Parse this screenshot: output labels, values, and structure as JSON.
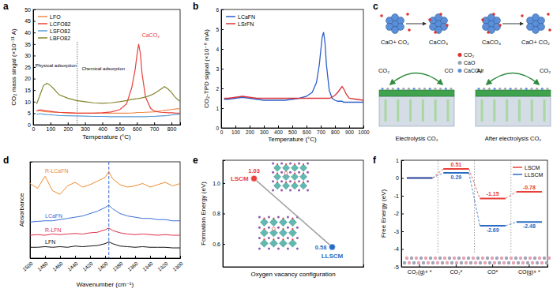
{
  "chart_data": [
    {
      "label": "a",
      "type": "line",
      "x_label": "Temperature (°C)",
      "y_label": "CO₂ mass singal (×10⁻¹¹ A)",
      "xlim": [
        0,
        850
      ],
      "xticks": [
        0,
        100,
        200,
        300,
        400,
        500,
        600,
        700,
        800
      ],
      "ylim": [
        0,
        50
      ],
      "yticks": [
        0,
        5,
        10,
        15,
        20,
        25,
        30,
        35,
        40,
        45,
        50
      ],
      "x": [
        20,
        40,
        60,
        80,
        100,
        120,
        150,
        200,
        250,
        300,
        350,
        400,
        450,
        500,
        540,
        570,
        590,
        600,
        610,
        620,
        630,
        650,
        680,
        700,
        720,
        740,
        760,
        780,
        800,
        820,
        850
      ],
      "series": [
        {
          "name": "LFO",
          "color": "#f08a4b",
          "values": [
            6,
            6,
            5.8,
            5.6,
            5.5,
            5.4,
            5.3,
            5.2,
            5.0,
            5.0,
            5.0,
            5.0,
            5.0,
            5.0,
            5.0,
            5.1,
            5.2,
            5.3,
            5.3,
            5.3,
            5.3,
            5.4,
            5.5,
            5.6,
            5.8,
            6.0,
            6.2,
            6.4,
            6.6,
            6.8,
            7.0
          ]
        },
        {
          "name": "LCFO82",
          "color": "#e8403a",
          "values": [
            6,
            6.5,
            6.2,
            6,
            5.8,
            5.6,
            5.4,
            5.2,
            5,
            5,
            5,
            5.2,
            5.5,
            6.5,
            9,
            16,
            24,
            30,
            35,
            31,
            22,
            12,
            7,
            6,
            5.6,
            5.4,
            5.3,
            5.2,
            5.2,
            5.1,
            5.0
          ]
        },
        {
          "name": "LSFO82",
          "color": "#5b9bd5",
          "values": [
            4.5,
            4.8,
            4.6,
            4.4,
            4.3,
            4.2,
            4.0,
            3.9,
            3.8,
            3.7,
            3.6,
            3.6,
            3.5,
            3.5,
            3.5,
            3.5,
            3.5,
            3.5,
            3.5,
            3.5,
            3.5,
            3.5,
            3.6,
            3.6,
            3.7,
            3.8,
            3.9,
            4.0,
            4.2,
            4.4,
            4.6
          ]
        },
        {
          "name": "LBFO82",
          "color": "#85852e",
          "values": [
            9,
            13,
            17,
            18,
            17,
            15.5,
            13,
            11.5,
            10.5,
            10,
            9.5,
            9.3,
            9.5,
            10,
            10.5,
            11,
            11.2,
            11.3,
            11.4,
            11.5,
            11.7,
            12,
            12.8,
            13.5,
            14.5,
            15.5,
            16.5,
            15.5,
            14,
            12,
            10
          ]
        }
      ],
      "legend": "upper left",
      "annotations": [
        "Physical adsorption",
        "Chemical adsorption",
        "CaCO₃"
      ]
    },
    {
      "label": "b",
      "type": "line",
      "x_label": "Temperature (°C)",
      "y_label": "CO₂-TPD signal (×10⁻⁹ mA)",
      "xlim": [
        0,
        1000
      ],
      "xticks": [
        0,
        100,
        200,
        300,
        400,
        500,
        600,
        700,
        800,
        900,
        1000
      ],
      "ylim": [
        0,
        6
      ],
      "yticks": [
        0,
        1,
        2,
        3,
        4,
        5,
        6
      ],
      "x": [
        20,
        50,
        100,
        150,
        200,
        250,
        300,
        350,
        400,
        450,
        500,
        550,
        600,
        640,
        670,
        690,
        700,
        710,
        720,
        730,
        740,
        760,
        780,
        800,
        820,
        840,
        850,
        860,
        880,
        900,
        950,
        1000
      ],
      "series": [
        {
          "name": "LCaFN",
          "color": "#2d5fc8",
          "values": [
            1.45,
            1.45,
            1.5,
            1.55,
            1.5,
            1.45,
            1.4,
            1.4,
            1.4,
            1.4,
            1.45,
            1.5,
            1.6,
            1.8,
            2.3,
            3.2,
            3.9,
            4.6,
            4.85,
            4.3,
            3.2,
            1.9,
            1.5,
            1.4,
            1.35,
            1.35,
            1.35,
            1.3,
            1.3,
            1.3,
            1.3,
            1.3
          ]
        },
        {
          "name": "LSrFN",
          "color": "#d9343a",
          "values": [
            1.5,
            1.5,
            1.55,
            1.6,
            1.55,
            1.5,
            1.5,
            1.5,
            1.5,
            1.5,
            1.5,
            1.5,
            1.5,
            1.5,
            1.5,
            1.5,
            1.5,
            1.5,
            1.5,
            1.5,
            1.5,
            1.5,
            1.55,
            1.65,
            1.8,
            2.0,
            2.1,
            2.0,
            1.7,
            1.5,
            1.45,
            1.4
          ]
        }
      ],
      "legend": "upper left"
    },
    {
      "label": "d",
      "type": "line",
      "x_label": "Wavenumber (cm⁻¹)",
      "y_label": "Absorbance",
      "xlim": [
        1500,
        1300
      ],
      "xticks": [
        1500,
        1480,
        1460,
        1440,
        1420,
        1400,
        1380,
        1360,
        1340,
        1320,
        1300
      ],
      "ylim": [
        0,
        8
      ],
      "yticks": [],
      "tick_labels": "x",
      "x": [
        1500,
        1490,
        1480,
        1470,
        1460,
        1450,
        1440,
        1430,
        1420,
        1410,
        1400,
        1395,
        1390,
        1380,
        1370,
        1360,
        1350,
        1340,
        1330,
        1320,
        1310,
        1300
      ],
      "series": [
        {
          "name": "R-LCaFN",
          "color": "#f08a2a",
          "values": [
            6.2,
            5.8,
            6.8,
            5.6,
            5.3,
            6.0,
            6.3,
            5.9,
            6.1,
            6.4,
            6.7,
            7.2,
            6.6,
            6.1,
            5.9,
            6.0,
            6.2,
            5.9,
            6.1,
            6.3,
            6.0,
            6.2
          ]
        },
        {
          "name": "LCaFN",
          "color": "#3b6fd4",
          "values": [
            3.0,
            3.05,
            3.1,
            3.1,
            3.2,
            3.3,
            3.4,
            3.5,
            3.7,
            3.9,
            4.2,
            4.4,
            4.1,
            3.7,
            3.5,
            3.4,
            3.3,
            3.3,
            3.2,
            3.2,
            3.1,
            3.1
          ]
        },
        {
          "name": "R-LFN",
          "color": "#e0304a",
          "values": [
            1.9,
            1.95,
            1.9,
            2.0,
            1.95,
            2.0,
            2.05,
            2.0,
            2.1,
            2.15,
            2.35,
            2.5,
            2.3,
            2.1,
            2.0,
            1.95,
            2.0,
            1.95,
            1.9,
            1.95,
            1.9,
            1.9
          ]
        },
        {
          "name": "LFN",
          "color": "#111111",
          "values": [
            0.9,
            0.9,
            0.95,
            0.9,
            0.95,
            0.9,
            1.0,
            0.95,
            1.0,
            1.05,
            1.2,
            1.35,
            1.2,
            1.0,
            0.95,
            0.9,
            0.95,
            0.9,
            0.9,
            0.9,
            0.85,
            0.85
          ]
        }
      ],
      "legend": "inline"
    },
    {
      "label": "e",
      "type": "line",
      "x_label": "Oxygen vacancy configuration",
      "y_label": "Formation Energy (eV)",
      "categories": [
        "LSCM",
        "LLSCM"
      ],
      "values": [
        1.03,
        0.58
      ],
      "colors": [
        "#e8403a",
        "#2a6cc4"
      ],
      "color": "#a0a0a0",
      "marker": "circle",
      "data_labels": true,
      "tick_labels": "y",
      "ylim": [
        0.45,
        1.15
      ],
      "yticks": [
        0.6,
        0.8,
        {
          "value": 1,
          "label": "1.0"
        }
      ]
    },
    {
      "label": "f",
      "type": "step",
      "y_label": "Free Energy (eV)",
      "categories": [
        "CO₂(g)+ *",
        "CO₂*",
        "CO*",
        "CO(g)+ *"
      ],
      "series": [
        {
          "name": "LSCM",
          "color": "#e8403a",
          "values": [
            0,
            0.51,
            -1.15,
            -0.78
          ],
          "value_labels": [
            null,
            "0.51",
            "-1.15",
            "-0.78"
          ]
        },
        {
          "name": "LLSCM",
          "color": "#2a6cc4",
          "values": [
            0,
            0.29,
            -2.69,
            -2.48
          ],
          "value_labels": [
            null,
            "0.29",
            "-2.69",
            "-2.48"
          ]
        }
      ],
      "ylim": [
        -5,
        1
      ],
      "yticks": [
        -5,
        -4,
        -3,
        -2,
        -1,
        0,
        1
      ],
      "data_labels": true,
      "legend": "upper right",
      "line_style": "dashed"
    }
  ],
  "diagram": {
    "label": "c",
    "reactions": [
      {
        "from": "CaO+ CO₂",
        "to": "CaCO₃"
      },
      {
        "from": "CaCO₃",
        "to": "CaO+ CO₂"
      }
    ],
    "species": [
      "CO₂",
      "CaO",
      "CaCO₃"
    ],
    "gas_flows": [
      {
        "in": "CO₂",
        "out": "CO"
      },
      {
        "in": "Air",
        "out": "CO₂"
      }
    ],
    "captions": [
      "Electrolysis CO₂",
      "After electrolysis CO₂"
    ]
  }
}
